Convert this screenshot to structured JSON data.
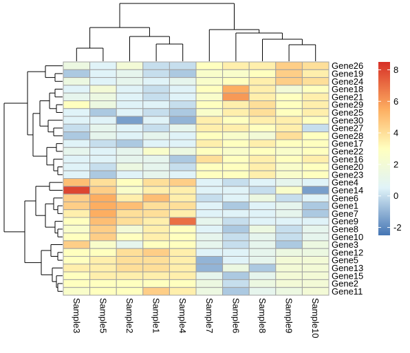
{
  "chart_data": {
    "type": "heatmap",
    "title": "",
    "xlabel": "",
    "ylabel": "",
    "columns": [
      "Sample3",
      "Sample5",
      "Sample2",
      "Sample1",
      "Sample4",
      "Sample7",
      "Sample6",
      "Sample8",
      "Sample9",
      "Sample10"
    ],
    "rows": [
      "Gene26",
      "Gene19",
      "Gene24",
      "Gene18",
      "Gene21",
      "Gene29",
      "Gene25",
      "Gene30",
      "Gene27",
      "Gene28",
      "Gene17",
      "Gene22",
      "Gene16",
      "Gene20",
      "Gene23",
      "Gene4",
      "Gene14",
      "Gene6",
      "Gene1",
      "Gene7",
      "Gene9",
      "Gene8",
      "Gene10",
      "Gene3",
      "Gene12",
      "Gene5",
      "Gene13",
      "Gene15",
      "Gene2",
      "Gene11"
    ],
    "values": [
      [
        1.5,
        0.5,
        2.0,
        0.0,
        0.0,
        3.0,
        3.5,
        3.5,
        4.5,
        4.0
      ],
      [
        -0.5,
        0.5,
        1.0,
        0.0,
        -0.5,
        2.5,
        2.5,
        3.0,
        4.5,
        3.5
      ],
      [
        1.5,
        0.5,
        1.0,
        0.5,
        1.0,
        2.5,
        3.0,
        3.5,
        4.5,
        4.0
      ],
      [
        0.5,
        2.0,
        0.5,
        0.0,
        0.5,
        3.0,
        5.5,
        3.5,
        2.0,
        3.0
      ],
      [
        1.0,
        1.5,
        0.5,
        0.0,
        0.5,
        2.5,
        6.0,
        3.5,
        3.0,
        3.5
      ],
      [
        3.0,
        1.5,
        0.5,
        0.5,
        0.0,
        3.0,
        3.5,
        4.0,
        3.0,
        3.5
      ],
      [
        0.5,
        -0.5,
        0.5,
        0.0,
        -0.5,
        2.5,
        3.5,
        4.0,
        3.0,
        3.5
      ],
      [
        0.5,
        0.5,
        -1.5,
        0.5,
        -1.0,
        3.5,
        3.0,
        3.5,
        3.5,
        3.0
      ],
      [
        0.0,
        1.0,
        0.5,
        0.0,
        1.0,
        3.5,
        3.5,
        3.0,
        3.5,
        0.0
      ],
      [
        -0.5,
        1.0,
        0.5,
        1.0,
        0.5,
        3.0,
        2.5,
        2.0,
        4.0,
        3.0
      ],
      [
        0.5,
        0.0,
        -0.5,
        0.5,
        0.5,
        3.5,
        3.0,
        3.5,
        3.0,
        3.0
      ],
      [
        1.0,
        0.5,
        1.0,
        2.5,
        1.5,
        3.0,
        2.5,
        3.0,
        2.5,
        3.0
      ],
      [
        0.5,
        0.5,
        1.0,
        1.0,
        -0.5,
        4.0,
        3.0,
        3.5,
        3.0,
        3.5
      ],
      [
        0.5,
        0.0,
        1.5,
        1.0,
        0.0,
        3.0,
        3.0,
        3.5,
        2.5,
        3.0
      ],
      [
        0.5,
        -0.5,
        0.5,
        1.0,
        0.5,
        3.0,
        3.0,
        3.5,
        2.5,
        3.0
      ],
      [
        5.0,
        4.0,
        3.0,
        4.0,
        4.5,
        0.5,
        0.0,
        0.5,
        1.0,
        0.5
      ],
      [
        8.0,
        4.5,
        2.5,
        3.5,
        3.5,
        0.5,
        0.5,
        0.0,
        2.5,
        -1.5
      ],
      [
        4.5,
        5.5,
        3.5,
        5.0,
        3.5,
        0.0,
        0.5,
        1.5,
        0.0,
        0.5
      ],
      [
        4.5,
        5.5,
        5.0,
        4.0,
        4.0,
        0.5,
        -0.5,
        0.5,
        1.0,
        -0.5
      ],
      [
        3.5,
        5.5,
        4.0,
        4.0,
        3.5,
        0.5,
        0.5,
        0.5,
        1.0,
        -0.5
      ],
      [
        3.0,
        5.0,
        4.0,
        3.5,
        7.0,
        1.0,
        0.0,
        0.5,
        0.5,
        0.5
      ],
      [
        2.5,
        4.5,
        2.0,
        3.5,
        3.0,
        0.5,
        -0.5,
        1.5,
        0.0,
        1.0
      ],
      [
        3.0,
        4.5,
        3.0,
        3.5,
        3.0,
        1.0,
        0.0,
        1.0,
        0.0,
        1.0
      ],
      [
        4.5,
        2.5,
        1.0,
        3.0,
        3.0,
        1.0,
        0.0,
        1.0,
        -0.5,
        1.5
      ],
      [
        3.0,
        3.0,
        4.0,
        4.5,
        3.5,
        0.5,
        0.5,
        1.0,
        1.5,
        1.5
      ],
      [
        3.0,
        3.5,
        4.0,
        4.0,
        3.5,
        -1.0,
        0.5,
        1.0,
        2.0,
        2.0
      ],
      [
        3.5,
        3.5,
        4.0,
        4.0,
        3.5,
        -1.0,
        1.5,
        -0.5,
        2.0,
        2.0
      ],
      [
        3.0,
        3.5,
        3.5,
        3.5,
        3.5,
        1.0,
        -0.5,
        1.0,
        2.0,
        2.0
      ],
      [
        3.0,
        3.0,
        3.0,
        3.0,
        3.0,
        1.5,
        0.0,
        1.5,
        2.0,
        2.0
      ],
      [
        2.5,
        3.0,
        3.0,
        4.5,
        3.5,
        1.5,
        -0.5,
        1.0,
        1.5,
        2.0
      ]
    ],
    "color_scale": {
      "min": -2.5,
      "max": 8.5,
      "stops": [
        {
          "value": -2.5,
          "color": "#4575b4"
        },
        {
          "value": 0.5,
          "color": "#e0f3f8"
        },
        {
          "value": 3.0,
          "color": "#ffffbf"
        },
        {
          "value": 5.5,
          "color": "#fdae61"
        },
        {
          "value": 8.5,
          "color": "#d73027"
        }
      ]
    },
    "legend": {
      "position": "right",
      "ticks": [
        -2,
        0,
        2,
        4,
        6,
        8
      ],
      "tick_labels": [
        "-2",
        "0",
        "2",
        "4",
        "6",
        "8"
      ]
    },
    "column_dendrogram": [
      {
        "members": [
          0,
          1
        ]
      },
      {
        "members": [
          3,
          4
        ]
      },
      {
        "members": [
          2,
          3,
          4
        ]
      },
      {
        "members": [
          0,
          1,
          2,
          3,
          4
        ]
      },
      {
        "members": [
          8,
          9
        ]
      },
      {
        "members": [
          7,
          8,
          9
        ]
      },
      {
        "members": [
          6,
          7,
          8,
          9
        ]
      },
      {
        "members": [
          5,
          6,
          7,
          8,
          9
        ]
      },
      {
        "members": [
          0,
          1,
          2,
          3,
          4,
          5,
          6,
          7,
          8,
          9
        ]
      }
    ],
    "row_dendrogram_groups": [
      {
        "members": [
          0,
          1,
          2,
          3,
          4,
          5,
          6,
          7,
          8,
          9,
          10,
          11,
          12,
          13,
          14
        ]
      },
      {
        "members": [
          15,
          16,
          17,
          18,
          19,
          20,
          21,
          22,
          23,
          24,
          25,
          26,
          27,
          28,
          29
        ]
      }
    ],
    "colors": {
      "cell_border": "#a0a0a0",
      "tree": "#000000"
    }
  }
}
